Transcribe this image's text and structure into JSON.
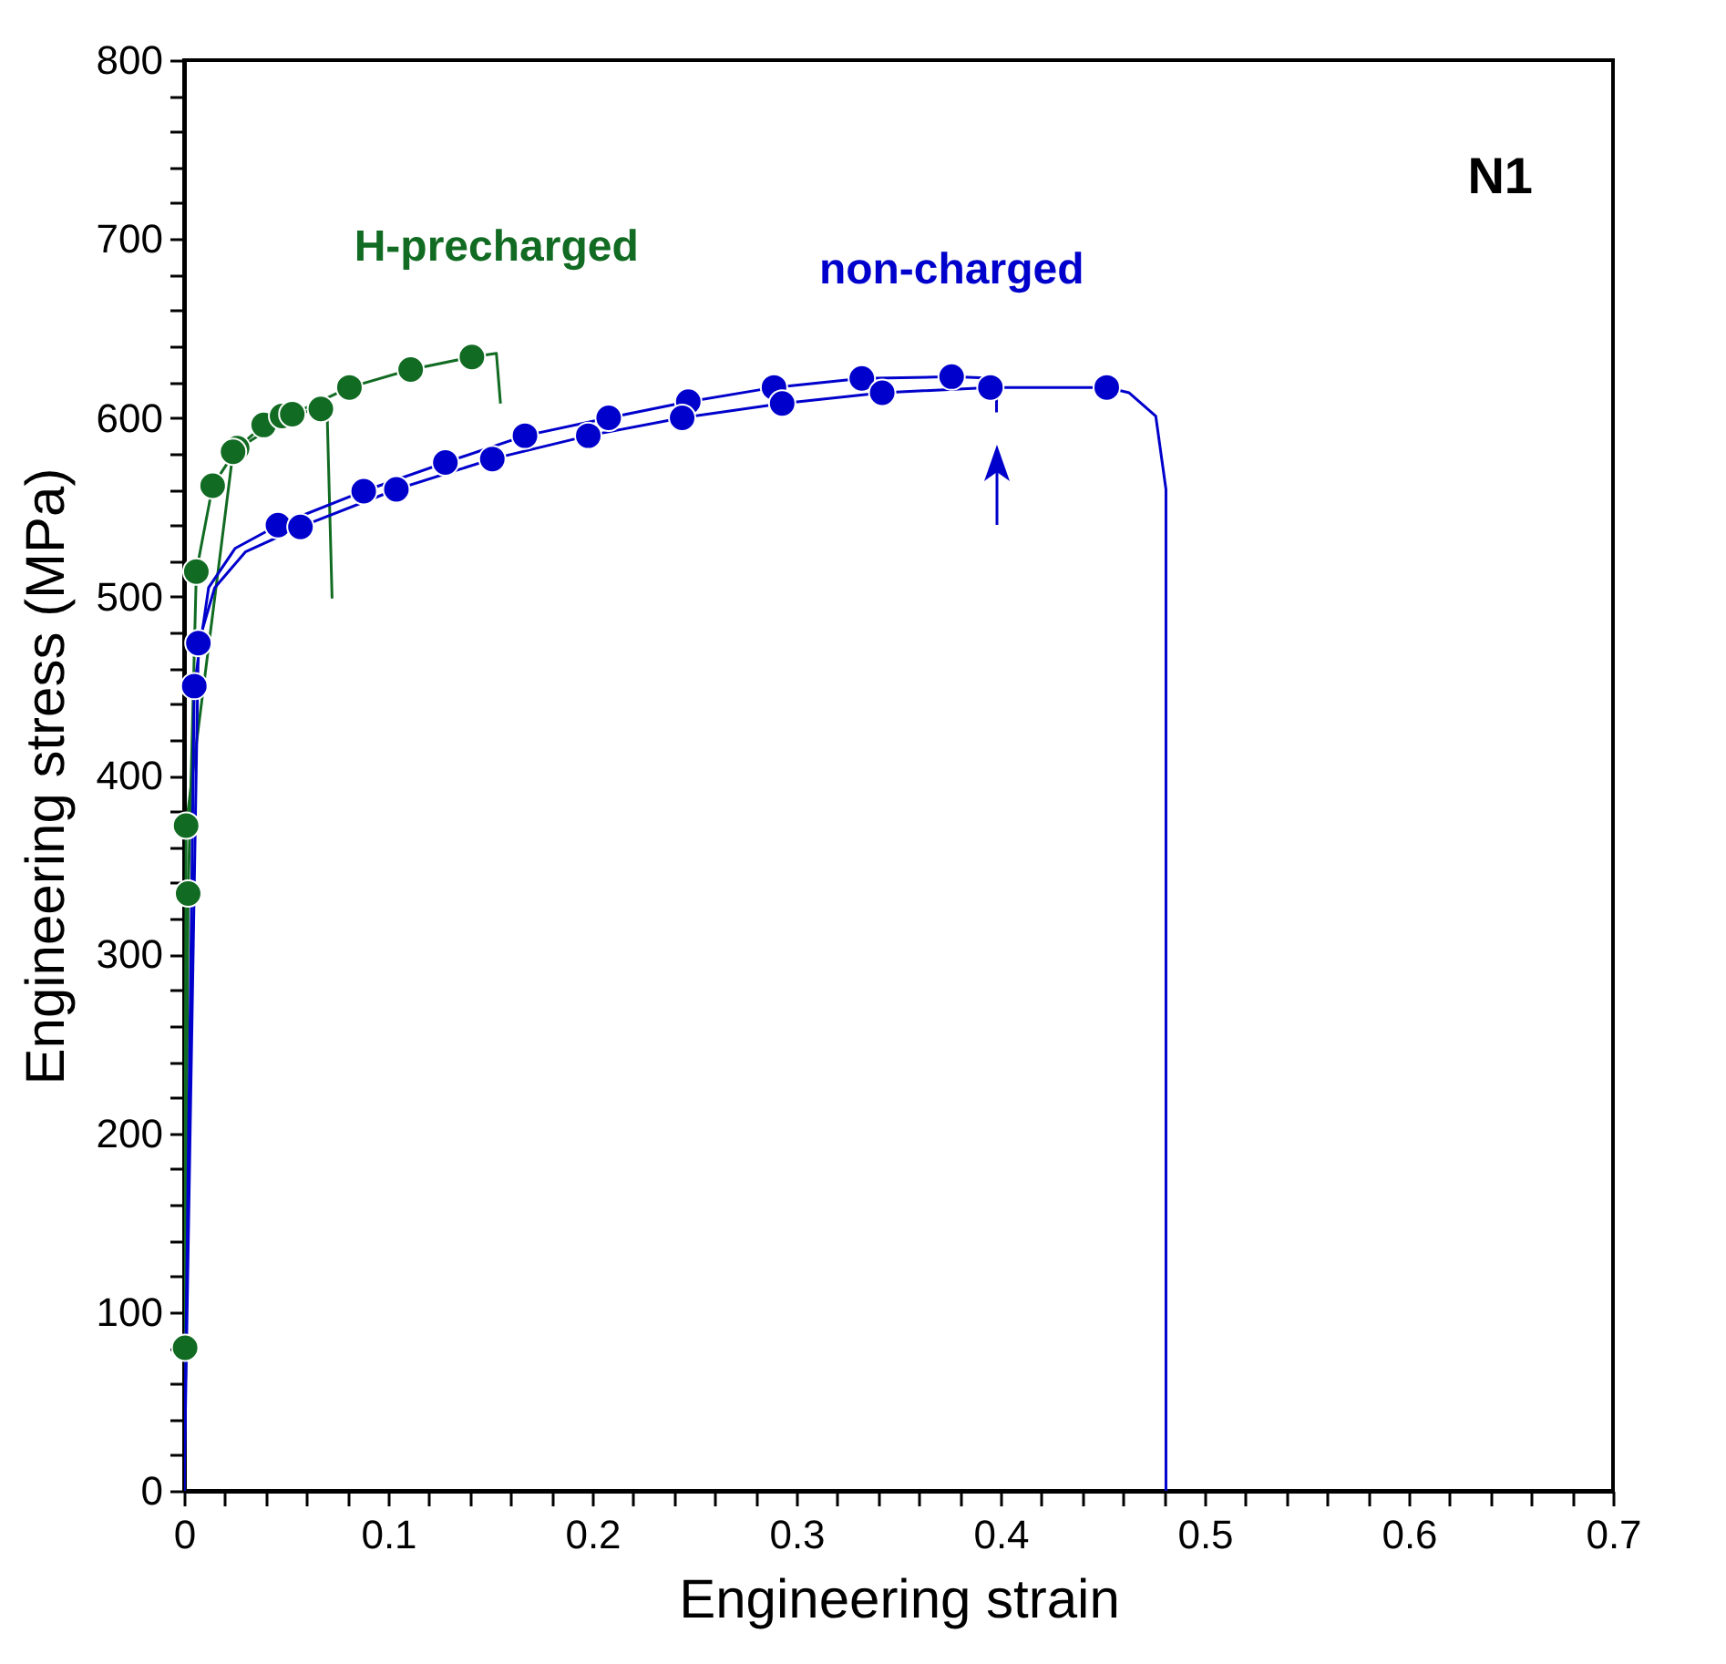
{
  "chart_data": {
    "type": "line",
    "xlabel": "Engineering strain",
    "ylabel": "Engineering stress (MPa)",
    "annotations": [
      "N1"
    ],
    "grid": false,
    "xlim": [
      0,
      0.7
    ],
    "ylim": [
      0,
      800
    ],
    "xticks": [
      0,
      {
        "value": 0.02,
        "label": null
      },
      {
        "value": 0.04,
        "label": null
      },
      {
        "value": 0.06,
        "label": null
      },
      {
        "value": 0.08,
        "label": null
      },
      0.1,
      {
        "value": 0.12,
        "label": null
      },
      {
        "value": 0.14,
        "label": null
      },
      {
        "value": 0.16,
        "label": null
      },
      {
        "value": 0.18,
        "label": null
      },
      0.2,
      {
        "value": 0.22,
        "label": null
      },
      {
        "value": 0.24,
        "label": null
      },
      {
        "value": 0.26,
        "label": null
      },
      {
        "value": 0.28,
        "label": null
      },
      0.3,
      {
        "value": 0.32,
        "label": null
      },
      {
        "value": 0.34,
        "label": null
      },
      {
        "value": 0.36,
        "label": null
      },
      {
        "value": 0.38,
        "label": null
      },
      0.4,
      {
        "value": 0.42,
        "label": null
      },
      {
        "value": 0.44,
        "label": null
      },
      {
        "value": 0.46,
        "label": null
      },
      {
        "value": 0.48,
        "label": null
      },
      0.5,
      {
        "value": 0.52,
        "label": null
      },
      {
        "value": 0.54,
        "label": null
      },
      {
        "value": 0.56,
        "label": null
      },
      {
        "value": 0.58,
        "label": null
      },
      0.6,
      {
        "value": 0.62,
        "label": null
      },
      {
        "value": 0.64,
        "label": null
      },
      {
        "value": 0.66,
        "label": null
      },
      {
        "value": 0.68,
        "label": null
      },
      0.7
    ],
    "yticks": [
      0,
      {
        "value": 20,
        "label": null
      },
      {
        "value": 40,
        "label": null
      },
      {
        "value": 60,
        "label": null
      },
      {
        "value": 80,
        "label": null
      },
      100,
      {
        "value": 120,
        "label": null
      },
      {
        "value": 140,
        "label": null
      },
      {
        "value": 160,
        "label": null
      },
      {
        "value": 180,
        "label": null
      },
      200,
      {
        "value": 220,
        "label": null
      },
      {
        "value": 240,
        "label": null
      },
      {
        "value": 260,
        "label": null
      },
      {
        "value": 280,
        "label": null
      },
      300,
      {
        "value": 320,
        "label": null
      },
      {
        "value": 340,
        "label": null
      },
      {
        "value": 360,
        "label": null
      },
      {
        "value": 380,
        "label": null
      },
      400,
      {
        "value": 420,
        "label": null
      },
      {
        "value": 440,
        "label": null
      },
      {
        "value": 460,
        "label": null
      },
      {
        "value": 480,
        "label": null
      },
      500,
      {
        "value": 520,
        "label": null
      },
      {
        "value": 540,
        "label": null
      },
      {
        "value": 560,
        "label": null
      },
      {
        "value": 580,
        "label": null
      },
      600,
      {
        "value": 620,
        "label": null
      },
      {
        "value": 640,
        "label": null
      },
      {
        "value": 660,
        "label": null
      },
      {
        "value": 680,
        "label": null
      },
      700,
      {
        "value": 720,
        "label": null
      },
      {
        "value": 740,
        "label": null
      },
      {
        "value": 760,
        "label": null
      },
      {
        "value": 780,
        "label": null
      },
      800
    ],
    "series": [
      {
        "name": "H-precharged",
        "marker": "none",
        "color": "#116b22",
        "x": [
          0,
          0.001,
          0.024,
          0.053,
          0.081,
          0.111,
          0.141,
          0.153,
          0.155
        ],
        "values": [
          0,
          372,
          581,
          602,
          617,
          627,
          634,
          636,
          608
        ]
      },
      {
        "marker": "none",
        "color": "#116b22",
        "x": [
          0,
          0.0005,
          0.002,
          0.006,
          0.014,
          0.026,
          0.039,
          0.048,
          0.067,
          0.07,
          0.0725
        ],
        "values": [
          0,
          80,
          334,
          514,
          562,
          583,
          596,
          601,
          605,
          606,
          499
        ]
      },
      {
        "name": "non-charged",
        "marker": "none",
        "color": "#0000cc",
        "x": [
          0,
          0.005,
          0.012,
          0.025,
          0.046,
          0.088,
          0.128,
          0.167,
          0.208,
          0.247,
          0.289,
          0.332,
          0.376,
          0.398,
          0.398
        ],
        "values": [
          0,
          450,
          505,
          527,
          540,
          559,
          575,
          590,
          600,
          609,
          617,
          622,
          623,
          622,
          603
        ]
      },
      {
        "marker": "none",
        "color": "#0000cc",
        "x": [
          0,
          0.007,
          0.015,
          0.03,
          0.057,
          0.104,
          0.151,
          0.198,
          0.244,
          0.293,
          0.342,
          0.395,
          0.452,
          0.463,
          0.476,
          0.481,
          0.481
        ],
        "values": [
          0,
          474,
          505,
          525,
          539,
          560,
          577,
          590,
          600,
          608,
          614,
          617,
          617,
          614,
          601,
          560,
          0
        ]
      },
      {
        "type": "scatter",
        "marker": "circle",
        "color": "#116b22",
        "x": [
          0.0005,
          0.002,
          0.006,
          0.014,
          0.026,
          0.039,
          0.048,
          0.067
        ],
        "values": [
          80,
          334,
          514,
          562,
          583,
          596,
          601,
          605
        ]
      },
      {
        "type": "scatter",
        "marker": "circle",
        "color": "#116b22",
        "x": [
          0.001,
          0.024,
          0.053,
          0.081,
          0.111,
          0.141
        ],
        "values": [
          372,
          581,
          602,
          617,
          627,
          634
        ]
      },
      {
        "type": "scatter",
        "marker": "circle",
        "color": "#0000cc",
        "x": [
          0.005,
          0.046,
          0.088,
          0.128,
          0.167,
          0.208,
          0.247,
          0.289,
          0.332,
          0.376
        ],
        "values": [
          450,
          540,
          559,
          575,
          590,
          600,
          609,
          617,
          622,
          623
        ]
      },
      {
        "type": "scatter",
        "marker": "circle",
        "color": "#0000cc",
        "x": [
          0.007,
          0.057,
          0.104,
          0.151,
          0.198,
          0.244,
          0.293,
          0.342,
          0.395,
          0.452
        ],
        "values": [
          474,
          539,
          560,
          577,
          590,
          600,
          608,
          614,
          617,
          617
        ]
      }
    ]
  }
}
